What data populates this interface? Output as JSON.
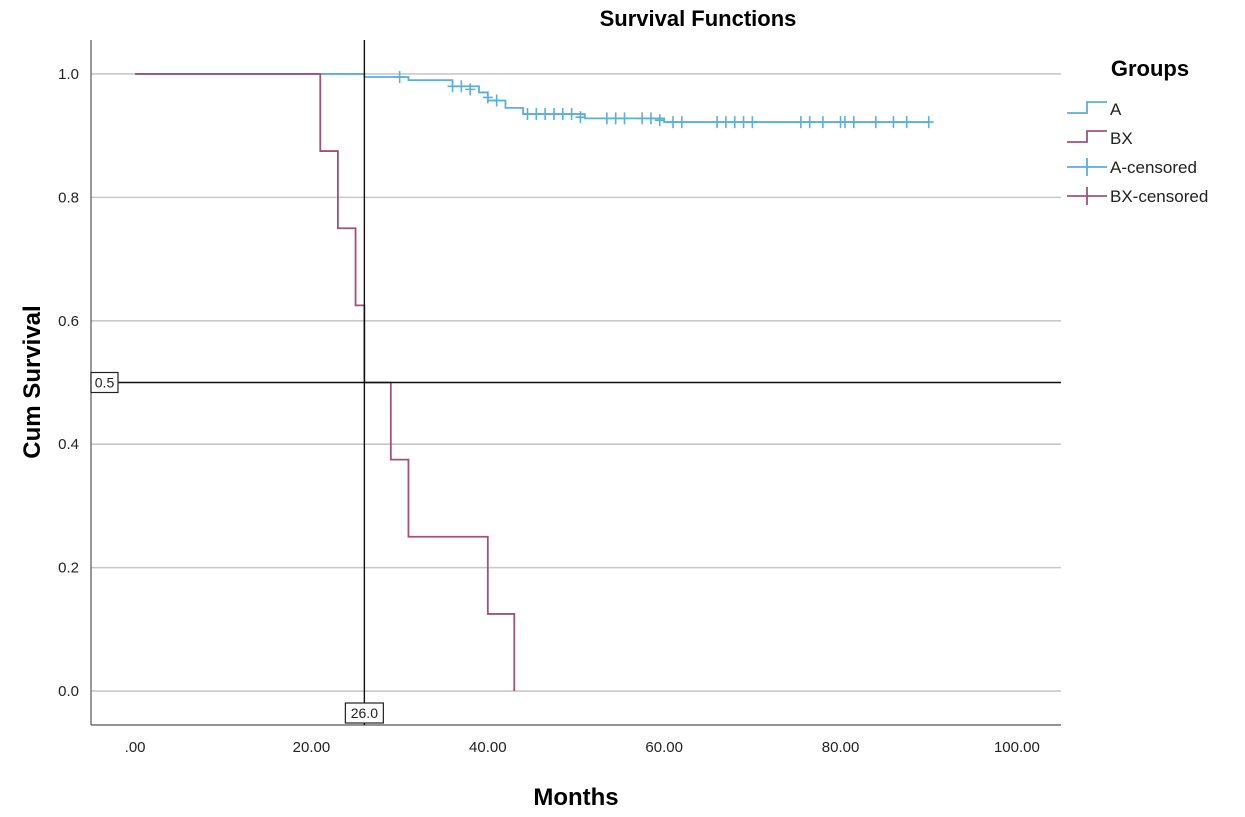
{
  "chart_data": {
    "type": "line",
    "title": "Survival Functions",
    "xlabel": "Months",
    "ylabel": "Cum Survival",
    "xlim": [
      -5,
      105
    ],
    "ylim": [
      -0.055,
      1.055
    ],
    "x_ticks": [
      {
        "value": 0,
        "label": ".00"
      },
      {
        "value": 20,
        "label": "20.00"
      },
      {
        "value": 40,
        "label": "40.00"
      },
      {
        "value": 60,
        "label": "60.00"
      },
      {
        "value": 80,
        "label": "80.00"
      },
      {
        "value": 100,
        "label": "100.00"
      }
    ],
    "y_ticks": [
      {
        "value": 0,
        "label": "0.0"
      },
      {
        "value": 0.2,
        "label": "0.2"
      },
      {
        "value": 0.4,
        "label": "0.4"
      },
      {
        "value": 0.6,
        "label": "0.6"
      },
      {
        "value": 0.8,
        "label": "0.8"
      },
      {
        "value": 1.0,
        "label": "1.0"
      }
    ],
    "grid": "horizontal",
    "legend": {
      "title": "Groups",
      "placement": "right",
      "entries": [
        {
          "label": "A",
          "kind": "line",
          "series": "A"
        },
        {
          "label": "BX",
          "kind": "line",
          "series": "BX"
        },
        {
          "label": "A-censored",
          "kind": "censor",
          "series": "A"
        },
        {
          "label": "BX-censored",
          "kind": "censor",
          "series": "BX"
        }
      ]
    },
    "series": [
      {
        "name": "A",
        "color": "#5aaee0",
        "steps": [
          [
            0,
            1.0
          ],
          [
            25,
            1.0
          ],
          [
            26,
            0.995
          ],
          [
            30,
            0.995
          ],
          [
            31,
            0.99
          ],
          [
            35,
            0.99
          ],
          [
            36,
            0.98
          ],
          [
            38,
            0.98
          ],
          [
            39,
            0.97
          ],
          [
            39.5,
            0.97
          ],
          [
            40,
            0.957
          ],
          [
            41,
            0.957
          ],
          [
            42,
            0.945
          ],
          [
            43,
            0.945
          ],
          [
            44,
            0.935
          ],
          [
            50,
            0.935
          ],
          [
            51,
            0.928
          ],
          [
            59,
            0.928
          ],
          [
            60,
            0.922
          ],
          [
            90,
            0.922
          ]
        ],
        "censored": [
          [
            30,
            0.995
          ],
          [
            36,
            0.98
          ],
          [
            37,
            0.98
          ],
          [
            38,
            0.975
          ],
          [
            40,
            0.962
          ],
          [
            41,
            0.957
          ],
          [
            44.5,
            0.935
          ],
          [
            45.5,
            0.935
          ],
          [
            46.5,
            0.935
          ],
          [
            47.5,
            0.935
          ],
          [
            48.5,
            0.935
          ],
          [
            49.5,
            0.935
          ],
          [
            50.5,
            0.93
          ],
          [
            53.5,
            0.928
          ],
          [
            54.5,
            0.928
          ],
          [
            55.5,
            0.928
          ],
          [
            57.5,
            0.928
          ],
          [
            58.5,
            0.928
          ],
          [
            59.5,
            0.925
          ],
          [
            61,
            0.922
          ],
          [
            62,
            0.922
          ],
          [
            66,
            0.922
          ],
          [
            67,
            0.922
          ],
          [
            68,
            0.922
          ],
          [
            69,
            0.922
          ],
          [
            70,
            0.922
          ],
          [
            75.5,
            0.922
          ],
          [
            76.5,
            0.922
          ],
          [
            78,
            0.922
          ],
          [
            80,
            0.922
          ],
          [
            80.5,
            0.922
          ],
          [
            81.5,
            0.922
          ],
          [
            84,
            0.922
          ],
          [
            86,
            0.922
          ],
          [
            87.5,
            0.922
          ],
          [
            90,
            0.922
          ]
        ]
      },
      {
        "name": "BX",
        "color": "#a3507a",
        "steps": [
          [
            0,
            1.0
          ],
          [
            21,
            1.0
          ],
          [
            21,
            0.875
          ],
          [
            23,
            0.875
          ],
          [
            23,
            0.75
          ],
          [
            25,
            0.75
          ],
          [
            25,
            0.625
          ],
          [
            26,
            0.625
          ],
          [
            26,
            0.5
          ],
          [
            29,
            0.5
          ],
          [
            29,
            0.375
          ],
          [
            31,
            0.375
          ],
          [
            31,
            0.25
          ],
          [
            40,
            0.25
          ],
          [
            40,
            0.125
          ],
          [
            43,
            0.125
          ],
          [
            43,
            0.0
          ]
        ],
        "censored": []
      }
    ],
    "reference_lines": [
      {
        "axis": "y",
        "value": 0.5,
        "label": "0.5"
      },
      {
        "axis": "x",
        "value": 26.0,
        "label": "26.0"
      }
    ]
  }
}
